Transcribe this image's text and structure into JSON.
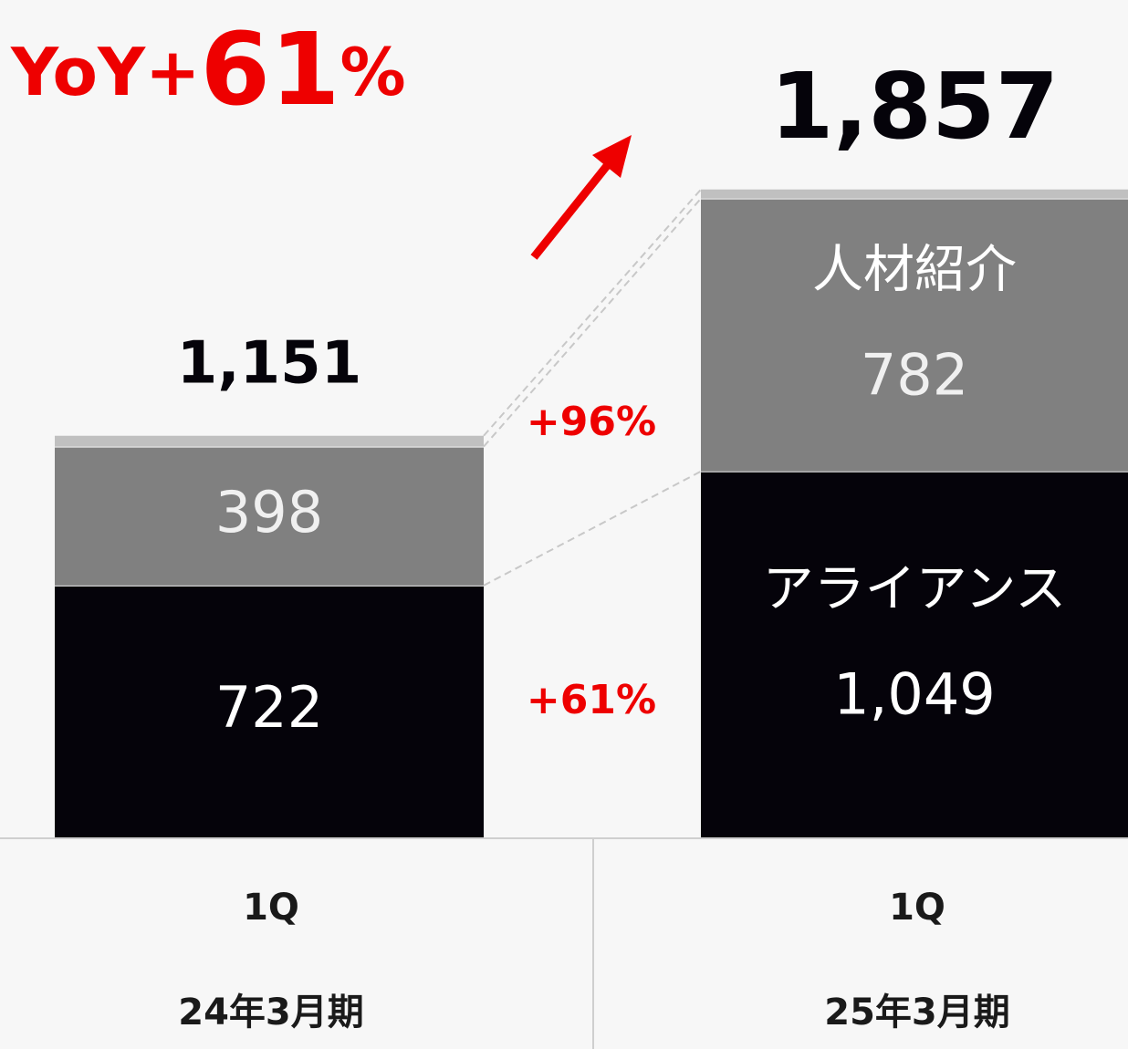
{
  "chart_data": {
    "type": "stacked_bar",
    "headline": [
      "YoY+",
      "61",
      "%"
    ],
    "categories": [
      "1Q",
      "1Q"
    ],
    "periods": [
      "24年3月期",
      "25年3月期"
    ],
    "series": [
      {
        "name": "アライアンス",
        "color": "#05030a",
        "values": [
          722,
          1049
        ],
        "value_labels": [
          "722",
          "1,049"
        ]
      },
      {
        "name": "人材紹介",
        "color": "#808080",
        "values": [
          398,
          782
        ]
      },
      {
        "color": "#c0c0c0",
        "values": [
          31,
          26
        ]
      }
    ],
    "totals": [
      1151,
      1857
    ],
    "total_labels": [
      "1,151",
      "1,857"
    ],
    "growth_labels": [
      "+61%",
      "+96%"
    ],
    "ylim": [
      0,
      2400
    ]
  }
}
